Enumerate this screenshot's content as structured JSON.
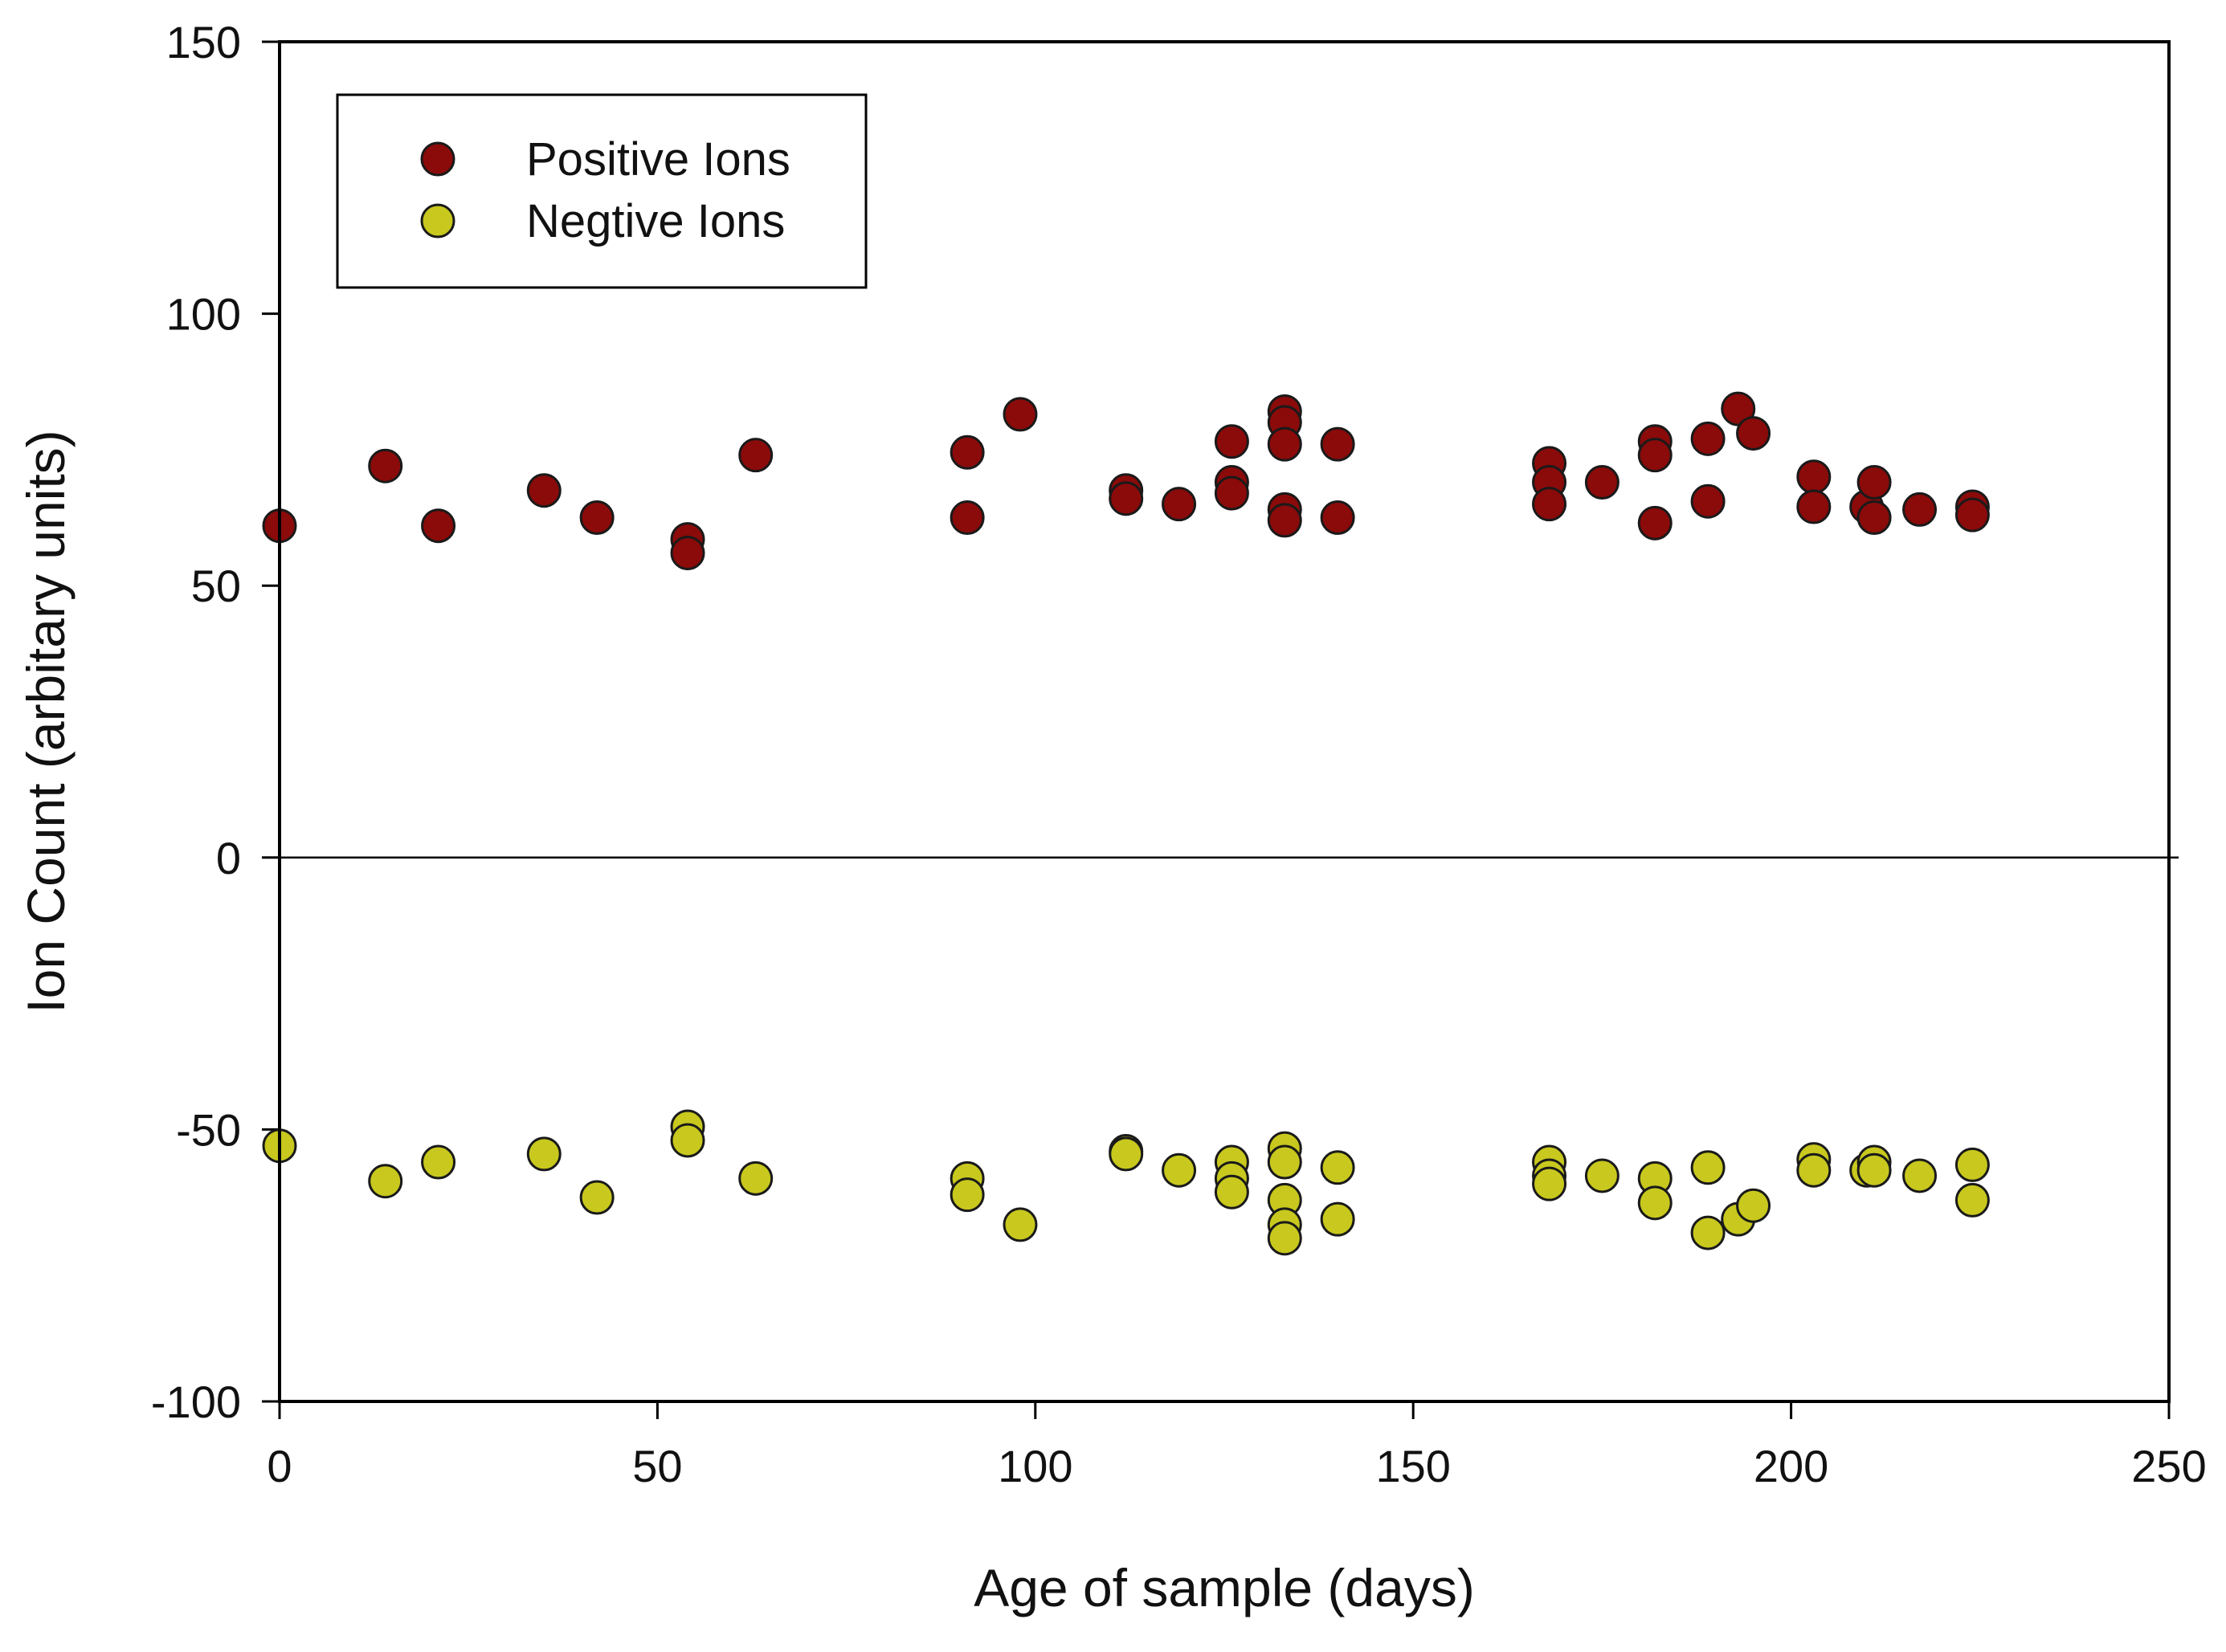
{
  "chart_data": {
    "type": "scatter",
    "title": "",
    "xlabel": "Age of sample (days)",
    "ylabel": "Ion Count (arbitary units)",
    "xlim": [
      0,
      250
    ],
    "ylim": [
      -100,
      150
    ],
    "xticks": [
      0,
      50,
      100,
      150,
      200,
      250
    ],
    "yticks": [
      -100,
      -50,
      0,
      50,
      100,
      150
    ],
    "x_tick_labels": [
      "0",
      "50",
      "100",
      "150",
      "200",
      "250"
    ],
    "y_tick_labels": [
      "-100",
      "-50",
      "0",
      "50",
      "100",
      "150"
    ],
    "zero_line": true,
    "grid": false,
    "legend_position": "top-left",
    "series": [
      {
        "name": "Positive Ions",
        "color": "#8B0A0A",
        "points": [
          [
            0,
            61
          ],
          [
            14,
            72
          ],
          [
            21,
            61
          ],
          [
            35,
            67.5
          ],
          [
            42,
            62.5
          ],
          [
            54,
            58.5
          ],
          [
            54,
            56
          ],
          [
            63,
            74
          ],
          [
            91,
            74.5
          ],
          [
            91,
            62.5
          ],
          [
            98,
            81.5
          ],
          [
            112,
            67.5
          ],
          [
            112,
            66
          ],
          [
            119,
            65
          ],
          [
            126,
            76.5
          ],
          [
            126,
            69
          ],
          [
            126,
            67
          ],
          [
            133,
            82
          ],
          [
            133,
            80
          ],
          [
            133,
            76
          ],
          [
            133,
            64
          ],
          [
            133,
            62
          ],
          [
            140,
            76
          ],
          [
            140,
            62.5
          ],
          [
            168,
            72.5
          ],
          [
            168,
            69
          ],
          [
            168,
            65
          ],
          [
            175,
            69
          ],
          [
            182,
            76.5
          ],
          [
            182,
            74
          ],
          [
            182,
            61.5
          ],
          [
            189,
            77
          ],
          [
            189,
            65.5
          ],
          [
            193,
            82.5
          ],
          [
            195,
            78
          ],
          [
            203,
            70
          ],
          [
            203,
            64.5
          ],
          [
            210,
            64.5
          ],
          [
            211,
            69
          ],
          [
            211,
            62.5
          ],
          [
            217,
            64
          ],
          [
            224,
            64.5
          ],
          [
            224,
            63
          ]
        ]
      },
      {
        "name": "Negtive Ions",
        "color": "#C8C81E",
        "points": [
          [
            0,
            -53
          ],
          [
            14,
            -59.5
          ],
          [
            21,
            -56
          ],
          [
            35,
            -54.5
          ],
          [
            42,
            -62.5
          ],
          [
            54,
            -49.5
          ],
          [
            54,
            -52
          ],
          [
            63,
            -59
          ],
          [
            91,
            -59
          ],
          [
            91,
            -62
          ],
          [
            98,
            -67.5
          ],
          [
            112,
            -54
          ],
          [
            112,
            -54.5
          ],
          [
            119,
            -57.5
          ],
          [
            126,
            -56
          ],
          [
            126,
            -59
          ],
          [
            126,
            -61.5
          ],
          [
            133,
            -53.5
          ],
          [
            133,
            -56
          ],
          [
            133,
            -63
          ],
          [
            133,
            -67.5
          ],
          [
            133,
            -70
          ],
          [
            140,
            -57
          ],
          [
            140,
            -66.5
          ],
          [
            168,
            -56
          ],
          [
            168,
            -58.5
          ],
          [
            168,
            -60
          ],
          [
            175,
            -58.5
          ],
          [
            182,
            -59
          ],
          [
            182,
            -63.5
          ],
          [
            189,
            -57
          ],
          [
            189,
            -69
          ],
          [
            193,
            -66.5
          ],
          [
            195,
            -64
          ],
          [
            203,
            -55.5
          ],
          [
            203,
            -57.5
          ],
          [
            210,
            -57.5
          ],
          [
            211,
            -56
          ],
          [
            211,
            -57.5
          ],
          [
            217,
            -58.5
          ],
          [
            224,
            -56.5
          ],
          [
            224,
            -63
          ]
        ]
      }
    ]
  }
}
